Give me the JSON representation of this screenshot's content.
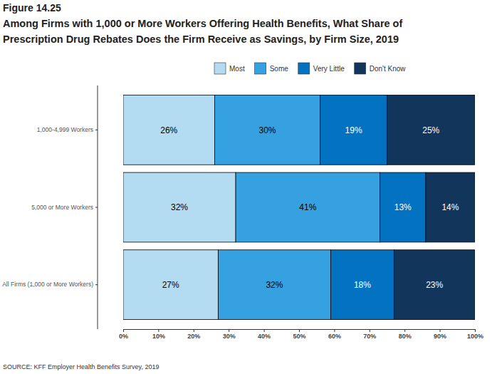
{
  "chart_data": {
    "type": "bar",
    "orientation": "horizontal",
    "stacked": true,
    "data_labels": true,
    "legend": "top",
    "title": "Figure 14.25",
    "subtitle": "Among Firms with 1,000 or More Workers Offering Health Benefits, What Share of Prescription Drug Rebates Does the Firm Receive as Savings, by Firm Size, 2019",
    "annotations": [
      "SOURCE: KFF Employer Health Benefits Survey, 2019"
    ],
    "categories": [
      "1,000-4,999 Workers",
      "5,000 or More Workers",
      "All Firms (1,000 or More Workers)"
    ],
    "series": [
      {
        "name": "Most",
        "color": "#b3dcf2",
        "values": [
          26,
          32,
          27
        ],
        "value_labels": [
          "26%",
          "32%",
          "27%"
        ]
      },
      {
        "name": "Some",
        "color": "#35a1e1",
        "values": [
          30,
          41,
          32
        ],
        "value_labels": [
          "30%",
          "41%",
          "32%"
        ]
      },
      {
        "name": "Very Little",
        "color": "#0272c1",
        "values": [
          19,
          13,
          18
        ],
        "value_labels": [
          "19%",
          "13%",
          "18%"
        ]
      },
      {
        "name": "Don't Know",
        "color": "#12355b",
        "values": [
          25,
          14,
          23
        ],
        "value_labels": [
          "25%",
          "14%",
          "23%"
        ]
      }
    ],
    "xlim": [
      0,
      100
    ],
    "xticks": [
      {
        "value": 0,
        "label": "0%"
      },
      {
        "value": 10,
        "label": "10%"
      },
      {
        "value": 20,
        "label": "20%"
      },
      {
        "value": 30,
        "label": "30%"
      },
      {
        "value": 40,
        "label": "40%"
      },
      {
        "value": 50,
        "label": "50%"
      },
      {
        "value": 60,
        "label": "60%"
      },
      {
        "value": 70,
        "label": "70%"
      },
      {
        "value": 80,
        "label": "80%"
      },
      {
        "value": 90,
        "label": "90%"
      },
      {
        "value": 100,
        "label": "100%"
      }
    ]
  }
}
